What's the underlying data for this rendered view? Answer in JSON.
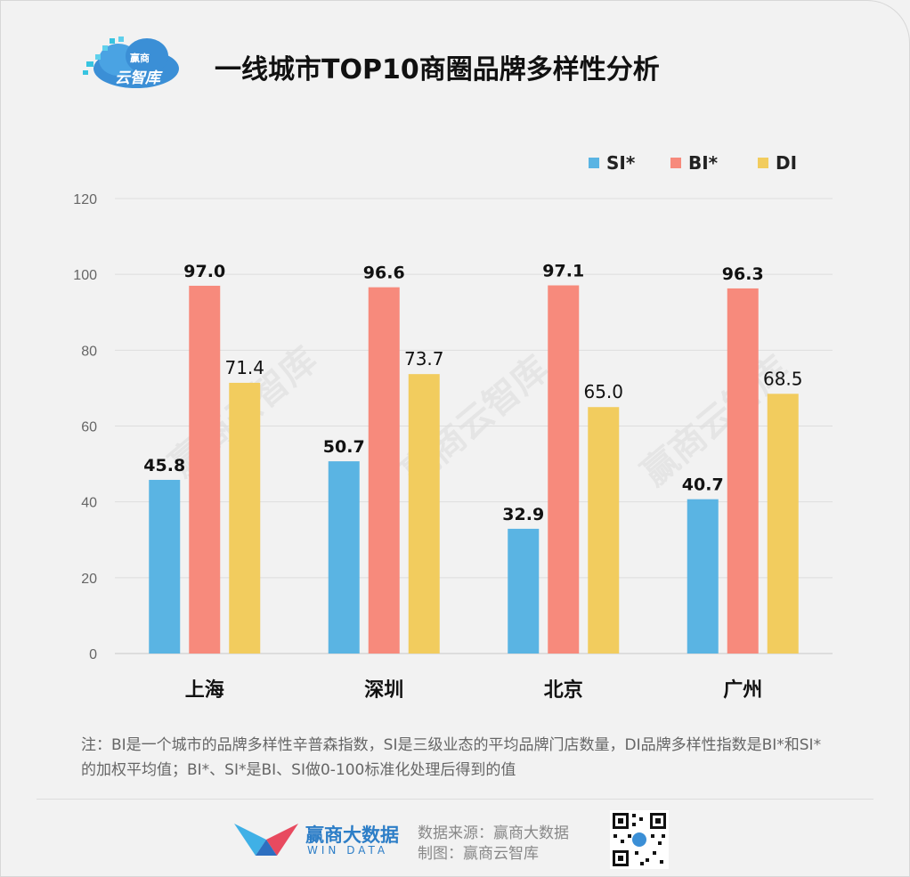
{
  "header": {
    "title": "一线城市TOP10商圈品牌多样性分析",
    "logo_text": "云智库",
    "logo_small": "赢商"
  },
  "legend": [
    {
      "label": "SI*",
      "color": "#5ab4e3"
    },
    {
      "label": "BI*",
      "color": "#f78a7c"
    },
    {
      "label": "DI",
      "color": "#f2cc5e"
    }
  ],
  "chart_data": {
    "type": "bar",
    "categories": [
      "上海",
      "深圳",
      "北京",
      "广州"
    ],
    "series": [
      {
        "name": "SI*",
        "values": [
          45.8,
          50.7,
          32.9,
          40.7
        ],
        "color": "#5ab4e3"
      },
      {
        "name": "BI*",
        "values": [
          97.0,
          96.6,
          97.1,
          96.3
        ],
        "color": "#f78a7c"
      },
      {
        "name": "DI",
        "values": [
          71.4,
          73.7,
          65.0,
          68.5
        ],
        "color": "#f2cc5e"
      }
    ],
    "value_labels": [
      [
        "45.8",
        "50.7",
        "32.9",
        "40.7"
      ],
      [
        "97.0",
        "96.6",
        "97.1",
        "96.3"
      ],
      [
        "71.4",
        "73.7",
        "65.0",
        "68.5"
      ]
    ],
    "yticks": [
      "0",
      "20",
      "40",
      "60",
      "80",
      "100",
      "120"
    ],
    "ylim": [
      0,
      120
    ],
    "grid": true,
    "legend_position": "top-right"
  },
  "note": "注：BI是一个城市的品牌多样性辛普森指数，SI是三级业态的平均品牌门店数量，DI品牌多样性指数是BI*和SI*的加权平均值；BI*、SI*是BI、SI做0-100标准化处理后得到的值",
  "footer": {
    "brand_cn": "赢商大数据",
    "brand_en": "WIN DATA",
    "source": "数据来源：赢商大数据",
    "made_by": "制图：赢商云智库"
  },
  "watermark": "赢商云智库"
}
